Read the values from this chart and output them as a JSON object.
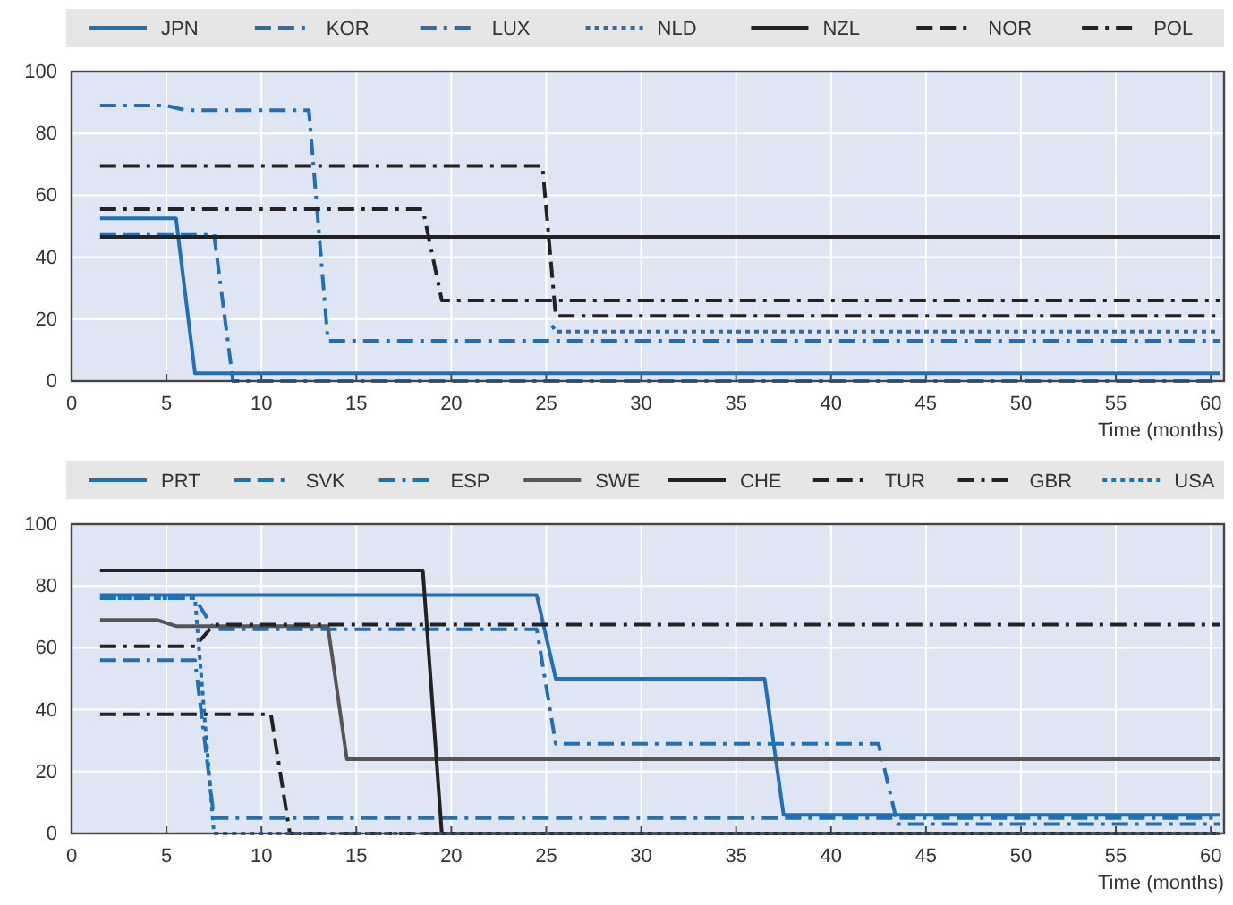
{
  "chart_data": [
    {
      "type": "line",
      "xlabel": "Time (months)",
      "xlim": [
        0,
        60.7
      ],
      "xticks": [
        0,
        5,
        10,
        15,
        20,
        25,
        30,
        35,
        40,
        45,
        50,
        55,
        60
      ],
      "ylim": [
        0,
        100
      ],
      "yticks": [
        0,
        20,
        40,
        60,
        80,
        100
      ],
      "grid": true,
      "legend": "top",
      "series": [
        {
          "name": "JPN",
          "color": "#1f70b8",
          "line_style": "solid",
          "x": [
            1.5,
            5.5,
            6.5,
            60.5
          ],
          "values": [
            52.5,
            52.5,
            2.5,
            2.5
          ]
        },
        {
          "name": "KOR",
          "color": "#1f70b8",
          "line_style": "dashed",
          "x": [
            1.5,
            7.5,
            8.5,
            60.5
          ],
          "values": [
            47.5,
            47.5,
            0,
            0
          ]
        },
        {
          "name": "LUX",
          "color": "#1f70b8",
          "line_style": "dashdot",
          "x": [
            1.5,
            5,
            6,
            12.5,
            13.5,
            60.5
          ],
          "values": [
            89,
            89,
            87.5,
            87.5,
            13,
            13
          ]
        },
        {
          "name": "NLD",
          "color": "#1f70b8",
          "line_style": "dotted",
          "x": [
            25.3,
            25.5,
            60.5
          ],
          "values": [
            18,
            16,
            16
          ]
        },
        {
          "name": "NZL",
          "color": "#222222",
          "line_style": "solid",
          "x": [
            1.5,
            60.5
          ],
          "values": [
            46.5,
            46.5
          ]
        },
        {
          "name": "NOR",
          "color": "#222222",
          "line_style": "dashed",
          "x": [
            1.5,
            24.8,
            25.5,
            60.5
          ],
          "values": [
            69.5,
            69.5,
            21,
            21
          ]
        },
        {
          "name": "POL",
          "color": "#222222",
          "line_style": "dashdot",
          "x": [
            1.5,
            18.5,
            19.5,
            60.5
          ],
          "values": [
            55.5,
            55.5,
            26,
            26
          ]
        }
      ]
    },
    {
      "type": "line",
      "xlabel": "Time (months)",
      "xlim": [
        0,
        60.7
      ],
      "xticks": [
        0,
        5,
        10,
        15,
        20,
        25,
        30,
        35,
        40,
        45,
        50,
        55,
        60
      ],
      "ylim": [
        0,
        100
      ],
      "yticks": [
        0,
        20,
        40,
        60,
        80,
        100
      ],
      "grid": true,
      "legend": "top",
      "series": [
        {
          "name": "PRT",
          "color": "#1f70b8",
          "line_style": "solid",
          "x": [
            1.5,
            24.5,
            25.5,
            36.5,
            37.5,
            60.5
          ],
          "values": [
            77,
            77,
            50,
            50,
            6,
            6
          ]
        },
        {
          "name": "SVK",
          "color": "#1f70b8",
          "line_style": "dashed",
          "x": [
            1.5,
            6.5,
            7.5,
            60.5
          ],
          "values": [
            56,
            56,
            5,
            5
          ]
        },
        {
          "name": "ESP",
          "color": "#1f70b8",
          "line_style": "dashdot",
          "x": [
            1.5,
            6.5,
            7.5,
            24.5,
            25.5,
            42.5,
            43.5,
            60.5
          ],
          "values": [
            76,
            76,
            66,
            66,
            29,
            29,
            3,
            3
          ]
        },
        {
          "name": "SWE",
          "color": "#555555",
          "line_style": "solid",
          "x": [
            1.5,
            4.5,
            5.5,
            13.5,
            14.5,
            60.5
          ],
          "values": [
            69,
            69,
            67,
            67,
            24,
            24
          ]
        },
        {
          "name": "CHE",
          "color": "#222222",
          "line_style": "solid",
          "x": [
            1.5,
            18.5,
            19.5,
            60.5
          ],
          "values": [
            85,
            85,
            0,
            0
          ]
        },
        {
          "name": "TUR",
          "color": "#222222",
          "line_style": "dashed",
          "x": [
            1.5,
            10.5,
            11.5,
            60.5
          ],
          "values": [
            38.5,
            38.5,
            0,
            0
          ]
        },
        {
          "name": "GBR",
          "color": "#222222",
          "line_style": "dashdot",
          "x": [
            1.5,
            6.5,
            7.5,
            60.5
          ],
          "values": [
            60.5,
            60.5,
            67.5,
            67.5
          ]
        },
        {
          "name": "USA",
          "color": "#1f70b8",
          "line_style": "dotted",
          "x": [
            1.5,
            6.5,
            7.5,
            60.5
          ],
          "values": [
            76,
            76,
            0,
            0
          ]
        }
      ]
    }
  ]
}
